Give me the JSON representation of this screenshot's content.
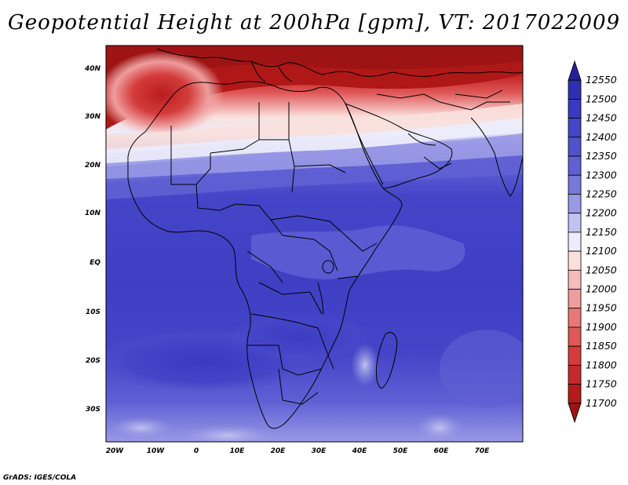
{
  "title": "Geopotential Height at 200hPa [gpm], VT: 2017022009",
  "credit": "GrADS: IGES/COLA",
  "map": {
    "lat_labels": [
      "40N",
      "30N",
      "20N",
      "10N",
      "EQ",
      "10S",
      "20S",
      "30S"
    ],
    "lon_labels": [
      "20W",
      "10W",
      "0",
      "10E",
      "20E",
      "30E",
      "40E",
      "50E",
      "60E",
      "70E"
    ]
  },
  "colorbar": {
    "levels": [
      "12550",
      "12500",
      "12450",
      "12400",
      "12350",
      "12300",
      "12250",
      "12200",
      "12150",
      "12100",
      "12050",
      "12000",
      "11950",
      "11900",
      "11850",
      "11800",
      "11750",
      "11700"
    ],
    "colors": [
      "#25209a",
      "#2e2eb0",
      "#3a3ac0",
      "#4545c8",
      "#5252cc",
      "#6060d4",
      "#7777dc",
      "#9999e6",
      "#c2c2f0",
      "#ececfa",
      "#fae0dc",
      "#f4bcbc",
      "#ee9c9c",
      "#e87878",
      "#e05858",
      "#d43c3c",
      "#c42a2a",
      "#b21c1c",
      "#9e1414"
    ]
  }
}
